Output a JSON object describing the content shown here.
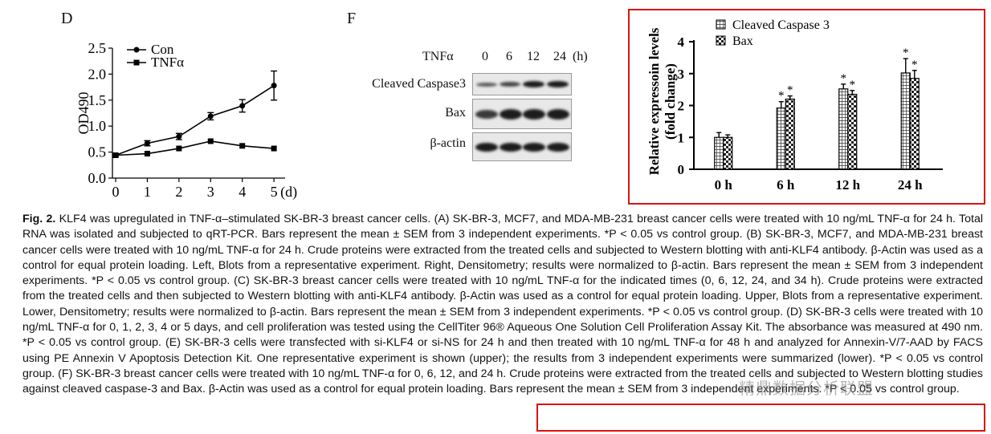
{
  "panels": {
    "D": {
      "letter": "D",
      "ylabel": "OD490",
      "xunit": "(d)",
      "legend": [
        "Con",
        "TNFα"
      ],
      "yticks": [
        "0.0",
        "0.5",
        "1.0",
        "1.5",
        "2.0",
        "2.5"
      ],
      "xticks": [
        "0",
        "1",
        "2",
        "3",
        "4",
        "5"
      ]
    },
    "F": {
      "letter": "F",
      "treatment_label": "TNFα",
      "times": [
        "0",
        "6",
        "12",
        "24"
      ],
      "time_unit": "(h)",
      "rows": [
        "Cleaved Caspase3",
        "Bax",
        "β-actin"
      ]
    },
    "bar": {
      "ylabel": "Relative expressoin levels (fold change)",
      "legend": [
        "Cleaved Caspase 3",
        "Bax"
      ],
      "yticks": [
        "0",
        "1",
        "2",
        "3",
        "4"
      ],
      "categories": [
        "0 h",
        "6 h",
        "12 h",
        "24 h"
      ],
      "sig": "*"
    }
  },
  "chart_data": [
    {
      "type": "line",
      "ylabel": "OD490",
      "xlabel": "(d)",
      "x": [
        0,
        1,
        2,
        3,
        4,
        5
      ],
      "ylim": [
        0,
        2.5
      ],
      "legend_position": "top-left",
      "series": [
        {
          "name": "Con",
          "values": [
            0.44,
            0.67,
            0.8,
            1.19,
            1.39,
            1.78
          ],
          "err": [
            0.03,
            0.05,
            0.06,
            0.07,
            0.12,
            0.28
          ]
        },
        {
          "name": "TNFα",
          "values": [
            0.44,
            0.47,
            0.57,
            0.71,
            0.62,
            0.57
          ],
          "err": [
            0.02,
            0.02,
            0.02,
            0.02,
            0.02,
            0.02
          ]
        }
      ]
    },
    {
      "type": "bar",
      "ylabel": "Relative expressoin levels (fold change)",
      "categories": [
        "0 h",
        "6 h",
        "12 h",
        "24 h"
      ],
      "ylim": [
        0,
        4
      ],
      "legend_position": "top-left",
      "series": [
        {
          "name": "Cleaved Caspase 3",
          "values": [
            1.0,
            1.92,
            2.52,
            3.02
          ],
          "err": [
            0.15,
            0.2,
            0.15,
            0.45
          ],
          "sig": [
            false,
            true,
            true,
            true
          ]
        },
        {
          "name": "Bax",
          "values": [
            1.0,
            2.2,
            2.35,
            2.85
          ],
          "err": [
            0.08,
            0.1,
            0.12,
            0.25
          ],
          "sig": [
            false,
            true,
            true,
            true
          ]
        }
      ]
    }
  ],
  "caption": {
    "fig_label": "Fig. 2.",
    "text": "KLF4 was upregulated in TNF-α–stimulated SK-BR-3 breast cancer cells. (A) SK-BR-3, MCF7, and MDA-MB-231 breast cancer cells were treated with 10 ng/mL TNF-α for 24 h. Total RNA was isolated and subjected to qRT-PCR. Bars represent the mean ± SEM from 3 independent experiments. *P < 0.05 vs control group. (B) SK-BR-3, MCF7, and MDA-MB-231 breast cancer cells were treated with 10 ng/mL TNF-α for 24 h. Crude proteins were extracted from the treated cells and subjected to Western blotting with anti-KLF4 antibody. β-Actin was used as a control for equal protein loading. Left, Blots from a representative experiment. Right, Densitometry; results were normalized to β-actin. Bars represent the mean ± SEM from 3 independent experiments. *P < 0.05 vs control group. (C) SK-BR-3 breast cancer cells were treated with 10 ng/mL TNF-α for the indicated times (0, 6, 12, 24, and 34 h). Crude proteins were extracted from the treated cells and then subjected to Western blotting with anti-KLF4 antibody. β-Actin was used as a control for equal protein loading. Upper, Blots from a representative experiment. Lower, Densitometry; results were normalized to β-actin. Bars represent the mean ± SEM from 3 independent experiments. *P < 0.05 vs control group. (D) SK-BR-3 cells were treated with 10 ng/mL TNF-α for 0, 1, 2, 3, 4 or 5 days, and cell proliferation was tested using the CellTiter 96® Aqueous One Solution Cell Proliferation Assay Kit. The absorbance was measured at 490 nm. *P < 0.05 vs control group. (E) SK-BR-3 cells were transfected with si-KLF4 or si-NS for 24 h and then treated with 10 ng/mL TNF-α for 48 h and analyzed for Annexin-V/7-AAD by FACS using PE Annexin V Apoptosis Detection Kit. One representative experiment is shown (upper); the results from 3 independent experiments were summarized (lower). *P < 0.05 vs control group. (F) SK-BR-3 breast cancer cells were treated with 10 ng/mL TNF-α for 0, 6, 12, and 24 h. Crude proteins were extracted from the treated cells and subjected to Western blotting studies against cleaved caspase-3 and Bax. β-Actin was used as a control for equal protein loading. Bars represent the mean ± SEM from 3 independent experiments. *P < 0.05 vs control group."
  },
  "watermark": "精鼎数据分析联盟"
}
